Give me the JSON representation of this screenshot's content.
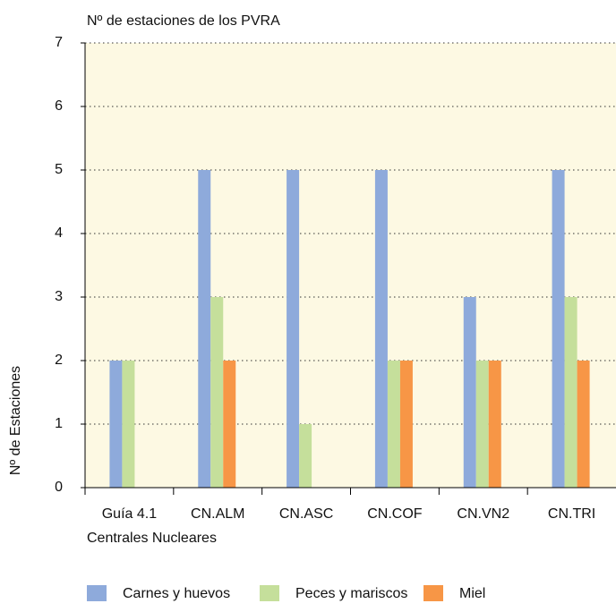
{
  "chart_data": {
    "type": "bar",
    "title": "Nº de estaciones de los PVRA",
    "x_label": "Centrales Nucleares",
    "y_label": "Nº de Estaciones",
    "categories": [
      "Guía 4.1",
      "CN.ALM",
      "CN.ASC",
      "CN.COF",
      "CN.VN2",
      "CN.TRI"
    ],
    "series": [
      {
        "name": "Carnes y huevos",
        "color": "#8eaadb",
        "values": [
          2,
          5,
          5,
          5,
          3,
          5
        ]
      },
      {
        "name": "Peces y mariscos",
        "color": "#c5df9b",
        "values": [
          2,
          3,
          1,
          2,
          2,
          3
        ]
      },
      {
        "name": "Miel",
        "color": "#f79646",
        "values": [
          0,
          2,
          0,
          2,
          2,
          2
        ]
      }
    ],
    "ylim": [
      0,
      7
    ],
    "yticks": [
      0,
      1,
      2,
      3,
      4,
      5,
      6,
      7
    ],
    "grid": true,
    "legend": "bottom"
  }
}
